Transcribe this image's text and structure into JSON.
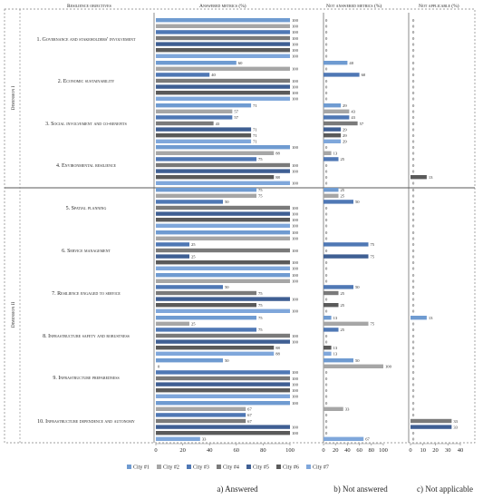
{
  "headers": {
    "objectives": "Resilience objectives",
    "answered": "Answered metrics (%)",
    "not_answered": "Not answered metrics (%)",
    "not_applicable": "Not applicable (%)"
  },
  "dimensions": [
    "Dimension I",
    "Dimension II"
  ],
  "objectives": [
    "1. Governance and stakeholders' involvement",
    "2. Economic sustainability",
    "3. Social involvement and co-benefits",
    "4. Environmental resilience",
    "5. Spatial planning",
    "6. Service management",
    "7. Resilience engaged to service",
    "8. Infrastructure safety and robustness",
    "9. Infrastructure preparedness",
    "10. Infrastructure dependence and autonomy"
  ],
  "legend": [
    "City #1",
    "City #2",
    "City #3",
    "City #4",
    "City #5",
    "City #6",
    "City #7"
  ],
  "colors": {
    "series": [
      "#6f9bd1",
      "#a6a6a6",
      "#4f78b5",
      "#7a7a7a",
      "#3f5f93",
      "#5a5a5a",
      "#7fa7db"
    ],
    "divider": "#7f7f7f",
    "text": "#262626"
  },
  "captions": [
    "a) Answered",
    "b) Not answered",
    "c) Not applicable"
  ],
  "chart_data": [
    {
      "type": "bar",
      "orientation": "horizontal",
      "title": "Answered metrics (%)",
      "xlim": [
        0,
        100
      ],
      "xticks": [
        "0",
        "20",
        "40",
        "60",
        "80",
        "100"
      ],
      "categories": [
        "1",
        "2",
        "3",
        "4",
        "5",
        "6",
        "7",
        "8",
        "9",
        "10"
      ],
      "series": [
        {
          "name": "City #1",
          "values": [
            100,
            60,
            71,
            100,
            75,
            100,
            100,
            75,
            50,
            100
          ]
        },
        {
          "name": "City #2",
          "values": [
            100,
            100,
            57,
            88,
            75,
            100,
            100,
            25,
            0,
            67
          ]
        },
        {
          "name": "City #3",
          "values": [
            100,
            40,
            57,
            75,
            50,
            25,
            50,
            75,
            100,
            67
          ]
        },
        {
          "name": "City #4",
          "values": [
            100,
            100,
            43,
            100,
            100,
            100,
            75,
            100,
            100,
            67
          ]
        },
        {
          "name": "City #5",
          "values": [
            100,
            100,
            71,
            100,
            100,
            25,
            100,
            100,
            100,
            100
          ]
        },
        {
          "name": "City #6",
          "values": [
            100,
            100,
            71,
            88,
            100,
            100,
            75,
            88,
            100,
            100
          ]
        },
        {
          "name": "City #7",
          "values": [
            100,
            100,
            71,
            100,
            100,
            100,
            100,
            88,
            100,
            33
          ]
        }
      ]
    },
    {
      "type": "bar",
      "orientation": "horizontal",
      "title": "Not answered metrics (%)",
      "xlim": [
        0,
        100
      ],
      "xticks": [
        "0",
        "20",
        "40",
        "60",
        "80",
        "100"
      ],
      "categories": [
        "1",
        "2",
        "3",
        "4",
        "5",
        "6",
        "7",
        "8",
        "9",
        "10"
      ],
      "series": [
        {
          "name": "City #1",
          "values": [
            0,
            40,
            29,
            0,
            25,
            0,
            0,
            13,
            50,
            0
          ]
        },
        {
          "name": "City #2",
          "values": [
            0,
            0,
            43,
            13,
            25,
            0,
            0,
            75,
            100,
            33
          ]
        },
        {
          "name": "City #3",
          "values": [
            0,
            60,
            43,
            25,
            50,
            75,
            50,
            25,
            0,
            0
          ]
        },
        {
          "name": "City #4",
          "values": [
            0,
            0,
            57,
            0,
            0,
            0,
            25,
            0,
            0,
            0
          ]
        },
        {
          "name": "City #5",
          "values": [
            0,
            0,
            29,
            0,
            0,
            75,
            0,
            0,
            0,
            0
          ]
        },
        {
          "name": "City #6",
          "values": [
            0,
            0,
            29,
            0,
            0,
            0,
            25,
            13,
            0,
            0
          ]
        },
        {
          "name": "City #7",
          "values": [
            0,
            0,
            29,
            0,
            0,
            0,
            0,
            13,
            0,
            67
          ]
        }
      ]
    },
    {
      "type": "bar",
      "orientation": "horizontal",
      "title": "Not applicable (%)",
      "xlim": [
        0,
        40
      ],
      "xticks": [
        "0",
        "10",
        "20",
        "30",
        "40"
      ],
      "categories": [
        "1",
        "2",
        "3",
        "4",
        "5",
        "6",
        "7",
        "8",
        "9",
        "10"
      ],
      "series": [
        {
          "name": "City #1",
          "values": [
            0,
            0,
            0,
            0,
            0,
            0,
            0,
            13,
            0,
            0
          ]
        },
        {
          "name": "City #2",
          "values": [
            0,
            0,
            0,
            0,
            0,
            0,
            0,
            0,
            0,
            0
          ]
        },
        {
          "name": "City #3",
          "values": [
            0,
            0,
            0,
            0,
            0,
            0,
            0,
            0,
            0,
            0
          ]
        },
        {
          "name": "City #4",
          "values": [
            0,
            0,
            0,
            0,
            0,
            0,
            0,
            0,
            0,
            33
          ]
        },
        {
          "name": "City #5",
          "values": [
            0,
            0,
            0,
            0,
            0,
            0,
            0,
            0,
            0,
            33
          ]
        },
        {
          "name": "City #6",
          "values": [
            0,
            0,
            0,
            13,
            0,
            0,
            0,
            0,
            0,
            0
          ]
        },
        {
          "name": "City #7",
          "values": [
            0,
            0,
            0,
            0,
            0,
            0,
            0,
            0,
            0,
            0
          ]
        }
      ]
    }
  ]
}
